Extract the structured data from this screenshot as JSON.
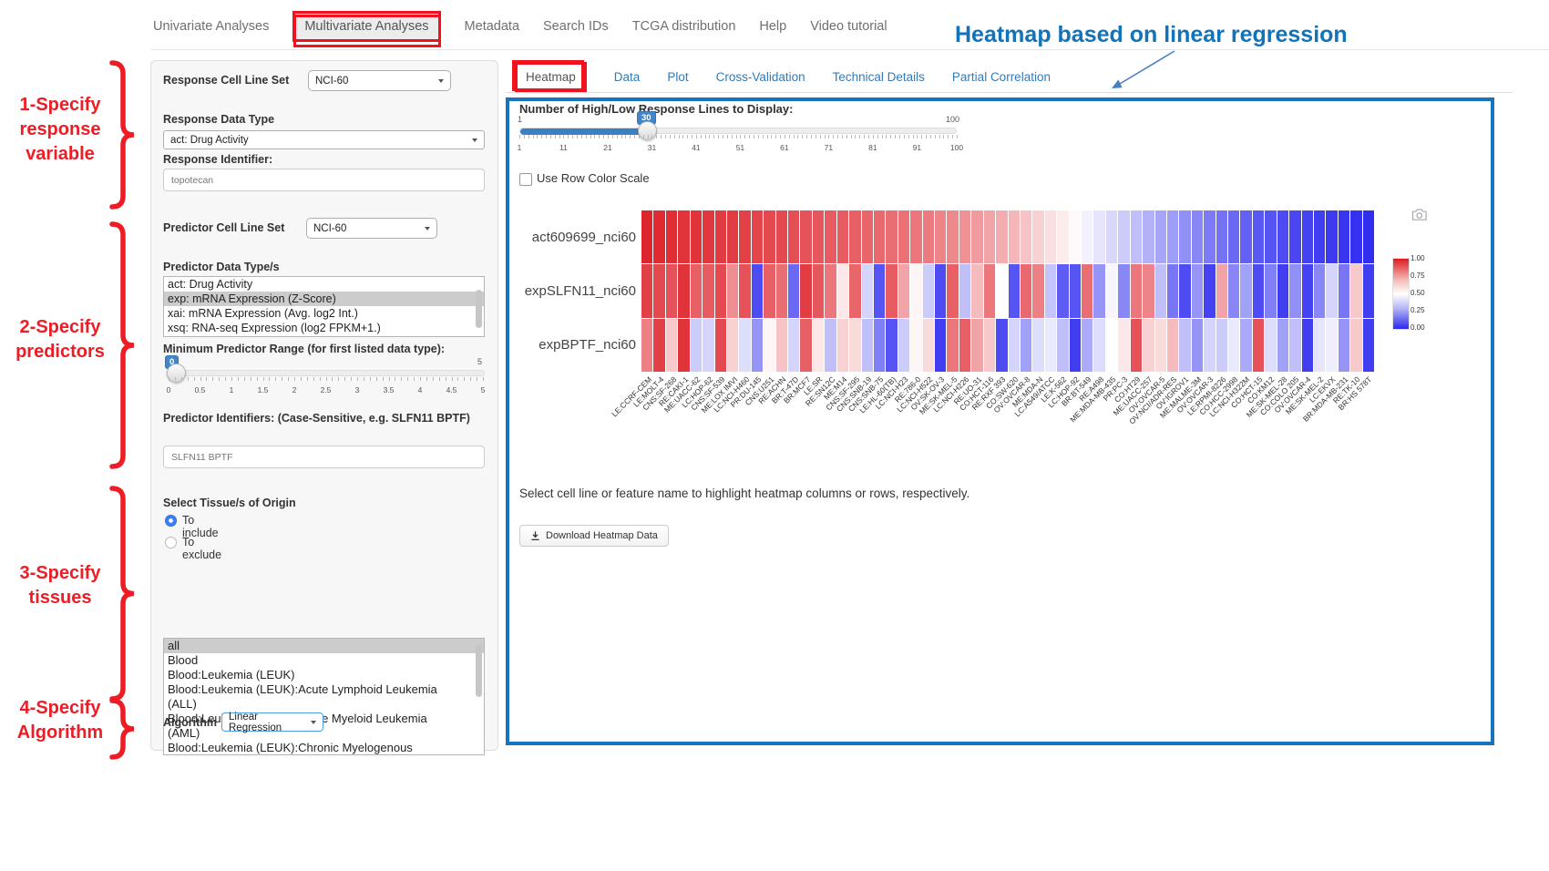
{
  "annotations": {
    "title": "Heatmap based on linear regression",
    "steps": [
      "1-Specify\nresponse\nvariable",
      "2-Specify\npredictors",
      "3-Specify\ntissues",
      "4-Specify\nAlgorithm"
    ],
    "red_color": "#ee1c25",
    "blue_color": "#1173b9"
  },
  "nav": {
    "items": [
      {
        "label": "Univariate Analyses",
        "active": false
      },
      {
        "label": "Multivariate Analyses",
        "active": true
      },
      {
        "label": "Metadata",
        "active": false
      },
      {
        "label": "Search IDs",
        "active": false
      },
      {
        "label": "TCGA distribution",
        "active": false
      },
      {
        "label": "Help",
        "active": false
      },
      {
        "label": "Video tutorial",
        "active": false
      }
    ]
  },
  "sidebar": {
    "response_cell_line_set": {
      "label": "Response Cell Line Set",
      "value": "NCI-60"
    },
    "response_data_type": {
      "label": "Response Data Type",
      "value": "act: Drug Activity"
    },
    "response_identifier": {
      "label": "Response Identifier:",
      "value": "topotecan"
    },
    "predictor_cell_line_set": {
      "label": "Predictor Cell Line Set",
      "value": "NCI-60"
    },
    "predictor_data_types": {
      "label": "Predictor Data Type/s",
      "options": [
        "act: Drug Activity",
        "exp: mRNA Expression (Z-Score)",
        "xai: mRNA Expression (Avg. log2 Int.)",
        "xsq: RNA-seq Expression (log2 FPKM+1.)"
      ],
      "selected_index": 1
    },
    "min_predictor_range": {
      "label": "Minimum Predictor Range (for first listed data type):",
      "value": "0",
      "max_label": "5",
      "ticks": [
        "0",
        "0.5",
        "1",
        "1.5",
        "2",
        "2.5",
        "3",
        "3.5",
        "4",
        "4.5",
        "5"
      ]
    },
    "predictor_identifiers": {
      "label": "Predictor Identifiers: (Case-Sensitive, e.g. SLFN11 BPTF)",
      "value": "SLFN11 BPTF"
    },
    "tissue": {
      "label": "Select Tissue/s of Origin",
      "radios": [
        {
          "label": "To include",
          "checked": true
        },
        {
          "label": "To exclude",
          "checked": false
        }
      ],
      "options": [
        "all",
        "Blood",
        "Blood:Leukemia (LEUK)",
        "Blood:Leukemia (LEUK):Acute Lymphoid Leukemia (ALL)",
        "Blood:Leukemia (LEUK):Acute Myeloid Leukemia (AML)",
        "Blood:Leukemia (LEUK):Chronic Myelogenous Leukemia (CML)"
      ],
      "selected_index": 0
    },
    "algorithm": {
      "label": "Algorithm",
      "value": "Linear Regression"
    }
  },
  "main": {
    "tabs": [
      {
        "label": "Heatmap",
        "active": true
      },
      {
        "label": "Data",
        "active": false
      },
      {
        "label": "Plot",
        "active": false
      },
      {
        "label": "Cross-Validation",
        "active": false
      },
      {
        "label": "Technical Details",
        "active": false
      },
      {
        "label": "Partial Correlation",
        "active": false
      }
    ],
    "lines_slider": {
      "label": "Number of High/Low Response Lines to Display:",
      "value": "30",
      "min_label": "1",
      "max_label": "100",
      "ticks": [
        "1",
        "11",
        "21",
        "31",
        "41",
        "51",
        "61",
        "71",
        "81",
        "91",
        "100"
      ]
    },
    "row_color_scale": {
      "label": "Use Row Color Scale",
      "checked": false
    },
    "hint": "Select cell line or feature name to highlight heatmap columns or rows, respectively.",
    "download_button_label": "Download Heatmap Data",
    "camera_icon": "camera-icon"
  },
  "chart_data": {
    "type": "heatmap",
    "rows": [
      "act609699_nci60",
      "expSLFN11_nci60",
      "expBPTF_nci60"
    ],
    "columns": [
      "LE:CCRF-CEM",
      "LE:MOLT-4",
      "CNS:SF-268",
      "RE:CAKI-1",
      "ME:UACC-62",
      "LC:HOP-62",
      "CNS:SF-539",
      "ME:LOX IMVI",
      "LC:NCI-H460",
      "PR:DU-145",
      "CNS:U251",
      "RE:ACHN",
      "BR:T-47D",
      "BR:MCF7",
      "LE:SR",
      "RE:SN12C",
      "ME:M14",
      "CNS:SF-295",
      "CNS:SNB-19",
      "CNS:SNB-75",
      "LE:HL-60(TB)",
      "LC:NCI-H23",
      "RE:786-0",
      "LC:NCI-H522",
      "OV:SK-OV-3",
      "ME:SK-MEL-5",
      "LC:NCI-H226",
      "RE:UO-31",
      "CO:HCT-116",
      "RE:RXF 393",
      "CO:SW-620",
      "OV:OVCAR-8",
      "ME:MDA-N",
      "LC:A549/ATCC",
      "LE:K-562",
      "LC:HOP-92",
      "BR:BT-549",
      "RE:A498",
      "ME:MDA-MB-435",
      "PR:PC-3",
      "CO:HT29",
      "ME:UACC-257",
      "OV:OVCAR-5",
      "OV:NCI/ADR-RES",
      "OV:IGROV1",
      "ME:MALME-3M",
      "OV:OVCAR-3",
      "LE:RPMI-8226",
      "CO:HCC-2998",
      "LC:NCI-H322M",
      "CO:HCT-15",
      "CO:KM12",
      "ME:SK-MEL-28",
      "CO:COLO 205",
      "OV:OVCAR-4",
      "ME:SK-MEL-2",
      "LC:EKVX",
      "BR:MDA-MB-231",
      "RE:TK-10",
      "BR:HS 578T"
    ],
    "values": [
      [
        0.98,
        0.97,
        0.96,
        0.95,
        0.95,
        0.94,
        0.93,
        0.93,
        0.92,
        0.91,
        0.9,
        0.9,
        0.89,
        0.88,
        0.87,
        0.86,
        0.86,
        0.85,
        0.84,
        0.83,
        0.82,
        0.81,
        0.8,
        0.79,
        0.77,
        0.76,
        0.74,
        0.72,
        0.7,
        0.68,
        0.66,
        0.63,
        0.6,
        0.57,
        0.54,
        0.51,
        0.47,
        0.44,
        0.41,
        0.38,
        0.35,
        0.32,
        0.29,
        0.27,
        0.24,
        0.22,
        0.19,
        0.17,
        0.15,
        0.13,
        0.11,
        0.1,
        0.08,
        0.07,
        0.06,
        0.05,
        0.04,
        0.03,
        0.02,
        0.01
      ],
      [
        0.92,
        0.9,
        0.88,
        0.95,
        0.85,
        0.86,
        0.9,
        0.75,
        0.88,
        0.08,
        0.85,
        0.82,
        0.15,
        0.93,
        0.87,
        0.8,
        0.55,
        0.84,
        0.4,
        0.1,
        0.86,
        0.7,
        0.52,
        0.38,
        0.08,
        0.85,
        0.35,
        0.65,
        0.8,
        0.5,
        0.1,
        0.83,
        0.78,
        0.36,
        0.12,
        0.1,
        0.82,
        0.25,
        0.48,
        0.22,
        0.8,
        0.77,
        0.35,
        0.18,
        0.08,
        0.25,
        0.06,
        0.7,
        0.22,
        0.28,
        0.08,
        0.2,
        0.05,
        0.24,
        0.06,
        0.22,
        0.4,
        0.18,
        0.62,
        0.05
      ],
      [
        0.78,
        0.92,
        0.62,
        0.95,
        0.38,
        0.4,
        0.9,
        0.6,
        0.42,
        0.25,
        0.52,
        0.63,
        0.4,
        0.85,
        0.55,
        0.35,
        0.6,
        0.58,
        0.35,
        0.2,
        0.1,
        0.38,
        0.52,
        0.58,
        0.05,
        0.8,
        0.85,
        0.7,
        0.62,
        0.08,
        0.4,
        0.28,
        0.42,
        0.45,
        0.35,
        0.05,
        0.3,
        0.42,
        0.5,
        0.55,
        0.88,
        0.6,
        0.58,
        0.65,
        0.35,
        0.25,
        0.4,
        0.38,
        0.45,
        0.3,
        0.88,
        0.42,
        0.28,
        0.35,
        0.05,
        0.44,
        0.46,
        0.25,
        0.62,
        0.05
      ]
    ],
    "value_range": [
      0,
      1
    ],
    "colorbar_ticks": [
      "1.00",
      "0.75",
      "0.50",
      "0.25",
      "0.00"
    ],
    "high_color": "#dd1c24",
    "mid_color": "#ffffff",
    "low_color": "#2c29ef",
    "legend_position": "right"
  }
}
